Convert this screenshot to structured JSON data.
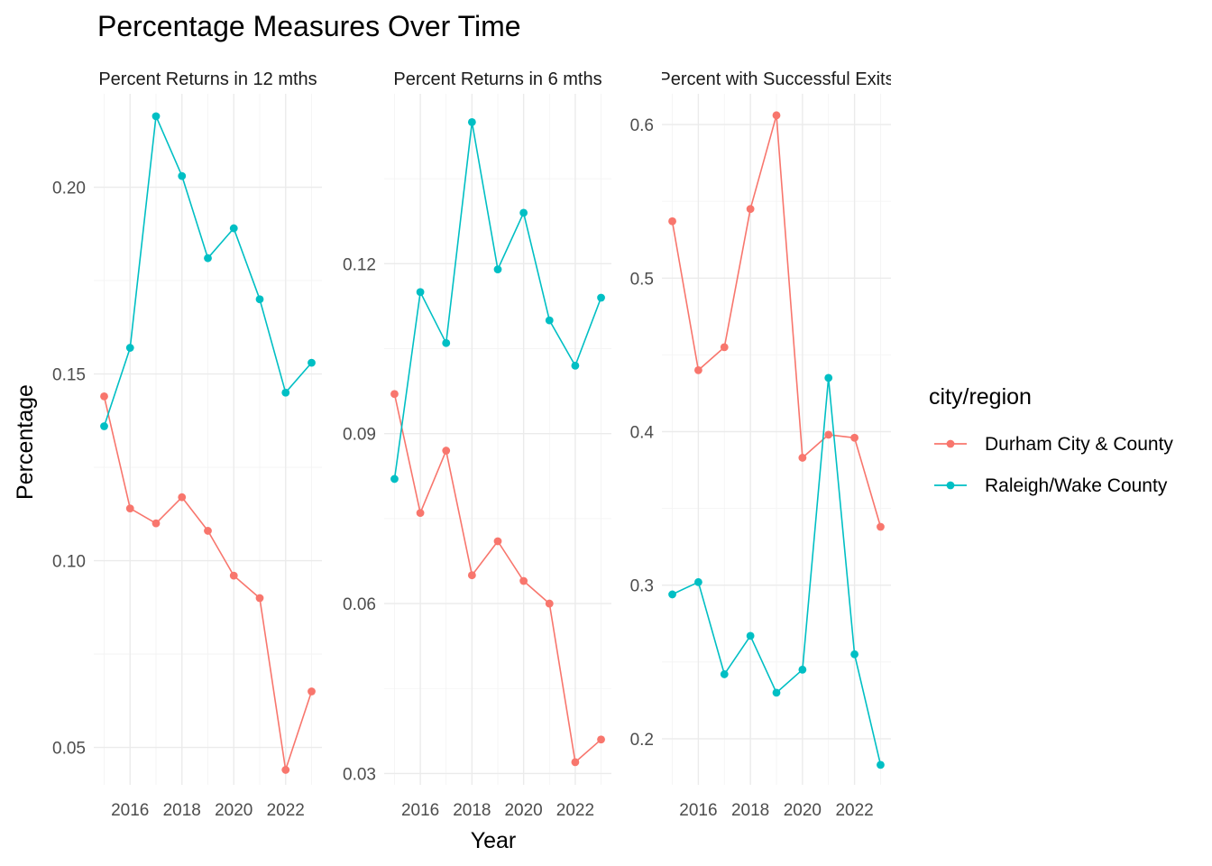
{
  "chart_data": {
    "type": "line",
    "title": "Percentage Measures Over Time",
    "xlabel": "Year",
    "ylabel": "Percentage",
    "legend": {
      "title": "city/region",
      "position": "right"
    },
    "x_ticks": [
      2016,
      2018,
      2020,
      2022
    ],
    "grid": true,
    "panels": [
      {
        "label": "Percent Returns in 12 mths",
        "ylim": [
          0.04,
          0.225
        ],
        "y_ticks": [
          0.05,
          0.1,
          0.15,
          0.2
        ],
        "y_tick_labels": [
          "0.05",
          "0.10",
          "0.15",
          "0.20"
        ],
        "series": [
          {
            "name": "Durham City & County",
            "color": "#F8766D",
            "x": [
              2015,
              2016,
              2017,
              2018,
              2019,
              2020,
              2021,
              2022,
              2023
            ],
            "values": [
              0.144,
              0.114,
              0.11,
              0.117,
              0.108,
              0.096,
              0.09,
              0.044,
              0.065
            ]
          },
          {
            "name": "Raleigh/Wake County",
            "color": "#00BFC4",
            "x": [
              2015,
              2016,
              2017,
              2018,
              2019,
              2020,
              2021,
              2022,
              2023
            ],
            "values": [
              0.136,
              0.157,
              0.219,
              0.203,
              0.181,
              0.189,
              0.17,
              0.145,
              0.153
            ]
          }
        ]
      },
      {
        "label": "Percent Returns in 6 mths",
        "ylim": [
          0.028,
          0.15
        ],
        "y_ticks": [
          0.03,
          0.06,
          0.09,
          0.12
        ],
        "y_tick_labels": [
          "0.03",
          "0.06",
          "0.09",
          "0.12"
        ],
        "series": [
          {
            "name": "Durham City & County",
            "color": "#F8766D",
            "x": [
              2015,
              2016,
              2017,
              2018,
              2019,
              2020,
              2021,
              2022,
              2023
            ],
            "values": [
              0.097,
              0.076,
              0.087,
              0.065,
              0.071,
              0.064,
              0.06,
              0.032,
              0.036
            ]
          },
          {
            "name": "Raleigh/Wake County",
            "color": "#00BFC4",
            "x": [
              2015,
              2016,
              2017,
              2018,
              2019,
              2020,
              2021,
              2022,
              2023
            ],
            "values": [
              0.082,
              0.115,
              0.106,
              0.145,
              0.119,
              0.129,
              0.11,
              0.102,
              0.114
            ]
          }
        ]
      },
      {
        "label": "Percent with Successful Exits",
        "ylim": [
          0.17,
          0.62
        ],
        "y_ticks": [
          0.2,
          0.3,
          0.4,
          0.5,
          0.6
        ],
        "y_tick_labels": [
          "0.2",
          "0.3",
          "0.4",
          "0.5",
          "0.6"
        ],
        "series": [
          {
            "name": "Durham City & County",
            "color": "#F8766D",
            "x": [
              2015,
              2016,
              2017,
              2018,
              2019,
              2020,
              2021,
              2022,
              2023
            ],
            "values": [
              0.537,
              0.44,
              0.455,
              0.545,
              0.606,
              0.383,
              0.398,
              0.396,
              0.338
            ]
          },
          {
            "name": "Raleigh/Wake County",
            "color": "#00BFC4",
            "x": [
              2015,
              2016,
              2017,
              2018,
              2019,
              2020,
              2021,
              2022,
              2023
            ],
            "values": [
              0.294,
              0.302,
              0.242,
              0.267,
              0.23,
              0.245,
              0.435,
              0.255,
              0.183
            ]
          }
        ]
      }
    ]
  }
}
